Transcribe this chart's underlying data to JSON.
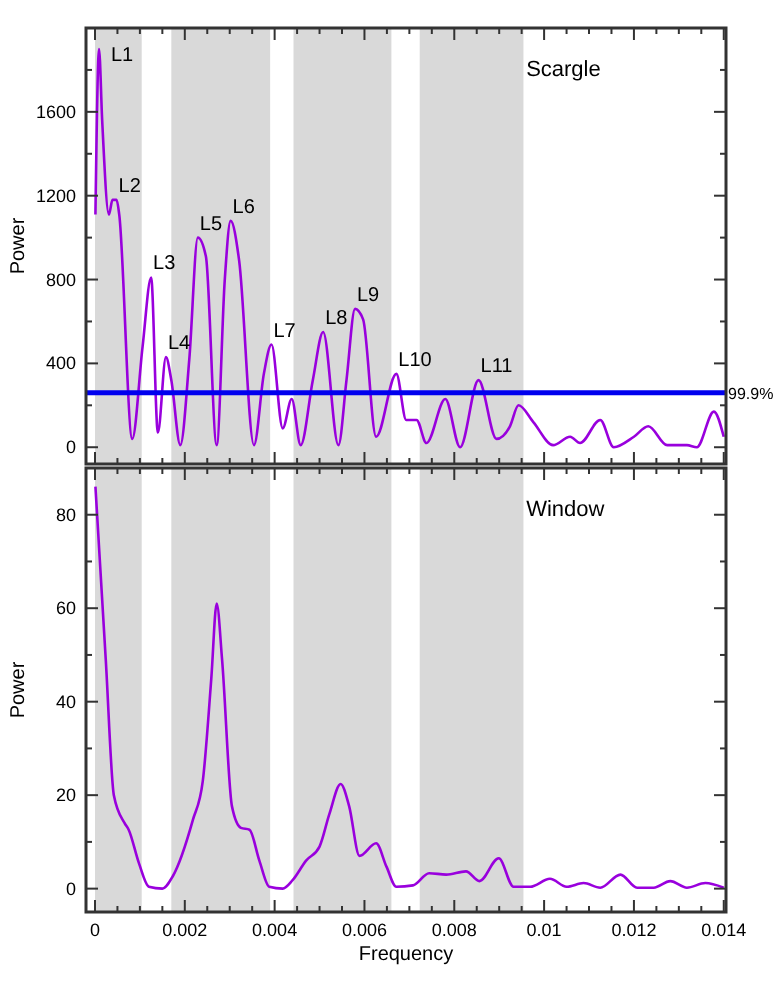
{
  "chart_data": [
    {
      "type": "line",
      "title": "Scargle",
      "ylabel": "Power",
      "tick_labels": "y",
      "xlim": [
        -0.0002,
        0.01405
      ],
      "ylim": [
        -80,
        2000
      ],
      "xticks": [
        0,
        {
          "value": 0.0005,
          "label": null
        },
        0.002,
        {
          "value": 0.001,
          "label": null
        },
        {
          "value": 0.0015,
          "label": null
        },
        {
          "value": 0.0025,
          "label": null
        },
        {
          "value": 0.003,
          "label": null
        },
        {
          "value": 0.0035,
          "label": null
        },
        0.004,
        {
          "value": 0.0045,
          "label": null
        },
        {
          "value": 0.005,
          "label": null
        },
        {
          "value": 0.0055,
          "label": null
        },
        0.006,
        {
          "value": 0.0065,
          "label": null
        },
        {
          "value": 0.007,
          "label": null
        },
        {
          "value": 0.0075,
          "label": null
        },
        0.008,
        {
          "value": 0.0085,
          "label": null
        },
        {
          "value": 0.009,
          "label": null
        },
        {
          "value": 0.0095,
          "label": null
        },
        0.01,
        {
          "value": 0.0105,
          "label": null
        },
        {
          "value": 0.011,
          "label": null
        },
        {
          "value": 0.0115,
          "label": null
        },
        0.012,
        {
          "value": 0.0125,
          "label": null
        },
        {
          "value": 0.013,
          "label": null
        },
        {
          "value": 0.0135,
          "label": null
        },
        0.014
      ],
      "yticks": [
        0,
        {
          "value": 200,
          "label": null
        },
        400,
        {
          "value": 600,
          "label": null
        },
        800,
        {
          "value": 1000,
          "label": null
        },
        1200,
        {
          "value": 1400,
          "label": null
        },
        1600,
        {
          "value": 1800,
          "label": null
        }
      ],
      "grid": false,
      "marker": "none",
      "line_style": "solid",
      "series": [
        {
          "color": "#9900dd",
          "x": [
            1e-05,
            9e-05,
            0.00016,
            0.00031,
            0.00039,
            0.00048,
            0.00054,
            0.00083,
            0.00106,
            0.00125,
            0.0014,
            0.00158,
            0.0017,
            0.0019,
            0.0021,
            0.00229,
            0.00247,
            0.00271,
            0.00289,
            0.00302,
            0.00321,
            0.00354,
            0.00376,
            0.00393,
            0.00418,
            0.00438,
            0.00458,
            0.00485,
            0.00508,
            0.00542,
            0.0056,
            0.00579,
            0.00597,
            0.00626,
            0.00671,
            0.00693,
            0.00716,
            0.00738,
            0.0078,
            0.00813,
            0.00854,
            0.00894,
            0.00924,
            0.00943,
            0.00976,
            0.0102,
            0.01058,
            0.0108,
            0.01125,
            0.01155,
            0.012,
            0.01232,
            0.01274,
            0.01318,
            0.0134,
            0.01378,
            0.014
          ],
          "values": [
            1110,
            1900,
            1560,
            1110,
            1180,
            1180,
            1110,
            40,
            480,
            810,
            70,
            430,
            320,
            10,
            420,
            1000,
            910,
            10,
            800,
            1080,
            890,
            10,
            350,
            490,
            90,
            230,
            10,
            320,
            550,
            10,
            320,
            660,
            610,
            50,
            350,
            130,
            130,
            20,
            230,
            0,
            320,
            40,
            100,
            200,
            120,
            10,
            50,
            20,
            130,
            0,
            50,
            100,
            10,
            10,
            0,
            170,
            50
          ]
        }
      ],
      "bands": [
        {
          "axis": "x",
          "from": 0,
          "to": 0.00104,
          "color": "#d9d9d9"
        },
        {
          "axis": "x",
          "from": 0.0017,
          "to": 0.0039,
          "color": "#d9d9d9"
        },
        {
          "axis": "x",
          "from": 0.00442,
          "to": 0.0066,
          "color": "#d9d9d9"
        },
        {
          "axis": "x",
          "from": 0.00723,
          "to": 0.00954,
          "color": "#d9d9d9"
        }
      ],
      "ref_lines": [
        {
          "axis": "y",
          "value": 260,
          "color": "#0000ee"
        }
      ],
      "annotations": [
        {
          "text": "L1",
          "x": 9e-05,
          "y": 1900
        },
        {
          "text": "L2",
          "x": 0.00048,
          "y": 1180
        },
        {
          "text": "L3",
          "x": 0.00125,
          "y": 810
        },
        {
          "text": "L4",
          "x": 0.00158,
          "y": 430
        },
        {
          "text": "L5",
          "x": 0.00229,
          "y": 1000
        },
        {
          "text": "L6",
          "x": 0.00302,
          "y": 1080
        },
        {
          "text": "L7",
          "x": 0.00393,
          "y": 490
        },
        {
          "text": "L8",
          "x": 0.00508,
          "y": 550
        },
        {
          "text": "L9",
          "x": 0.00579,
          "y": 660
        },
        {
          "text": "L10",
          "x": 0.00671,
          "y": 350
        },
        {
          "text": "L11",
          "x": 0.00854,
          "y": 320
        },
        {
          "text": "99.9%",
          "x": 0.01405,
          "y": 260
        }
      ]
    },
    {
      "type": "line",
      "title": "Window",
      "xlabel": "Frequency",
      "ylabel": "Power",
      "xlim": [
        -0.0002,
        0.01405
      ],
      "ylim": [
        -5,
        90
      ],
      "xticks": [
        0,
        {
          "value": 0.0005,
          "label": null
        },
        0.002,
        {
          "value": 0.001,
          "label": null
        },
        {
          "value": 0.0015,
          "label": null
        },
        {
          "value": 0.0025,
          "label": null
        },
        {
          "value": 0.003,
          "label": null
        },
        {
          "value": 0.0035,
          "label": null
        },
        0.004,
        {
          "value": 0.0045,
          "label": null
        },
        {
          "value": 0.005,
          "label": null
        },
        {
          "value": 0.0055,
          "label": null
        },
        0.006,
        {
          "value": 0.0065,
          "label": null
        },
        {
          "value": 0.007,
          "label": null
        },
        {
          "value": 0.0075,
          "label": null
        },
        0.008,
        {
          "value": 0.0085,
          "label": null
        },
        {
          "value": 0.009,
          "label": null
        },
        {
          "value": 0.0095,
          "label": null
        },
        0.01,
        {
          "value": 0.0105,
          "label": null
        },
        {
          "value": 0.011,
          "label": null
        },
        {
          "value": 0.0115,
          "label": null
        },
        0.012,
        {
          "value": 0.0125,
          "label": null
        },
        {
          "value": 0.013,
          "label": null
        },
        {
          "value": 0.0135,
          "label": null
        },
        0.014
      ],
      "yticks": [
        0,
        {
          "value": 10,
          "label": null
        },
        20,
        {
          "value": 30,
          "label": null
        },
        40,
        {
          "value": 50,
          "label": null
        },
        60,
        {
          "value": 70,
          "label": null
        },
        80
      ],
      "grid": false,
      "marker": "none",
      "line_style": "solid",
      "series": [
        {
          "color": "#9900dd",
          "x": [
            1e-05,
            0.00024,
            0.00042,
            0.00066,
            0.00075,
            0.00098,
            0.0012,
            0.0015,
            0.00173,
            0.00218,
            0.0024,
            0.00259,
            0.00271,
            0.00283,
            0.00305,
            0.00325,
            0.00344,
            0.00366,
            0.00388,
            0.00418,
            0.0044,
            0.0047,
            0.005,
            0.00522,
            0.00547,
            0.00566,
            0.00589,
            0.00626,
            0.00649,
            0.00671,
            0.00708,
            0.00744,
            0.00782,
            0.00826,
            0.00856,
            0.00899,
            0.00932,
            0.00969,
            0.01013,
            0.0105,
            0.01088,
            0.01125,
            0.0117,
            0.01207,
            0.01244,
            0.01281,
            0.01318,
            0.01359,
            0.014
          ],
          "values": [
            86,
            49,
            20,
            14,
            12.6,
            5.4,
            0.4,
            0,
            2.6,
            14.7,
            23,
            45,
            61,
            49,
            17.6,
            13,
            12.6,
            6,
            0.4,
            0,
            1.8,
            6,
            9,
            16,
            22.4,
            17.6,
            7,
            9.7,
            4.7,
            0.4,
            0.7,
            3.3,
            3,
            3.7,
            1.6,
            6.5,
            0.4,
            0.4,
            2.1,
            0.4,
            1.2,
            0.2,
            3,
            0.2,
            0.2,
            1.6,
            0.2,
            1.2,
            0.2
          ]
        }
      ],
      "bands": [
        {
          "axis": "x",
          "from": 0,
          "to": 0.00104,
          "color": "#d9d9d9"
        },
        {
          "axis": "x",
          "from": 0.0017,
          "to": 0.0039,
          "color": "#d9d9d9"
        },
        {
          "axis": "x",
          "from": 0.00442,
          "to": 0.0066,
          "color": "#d9d9d9"
        },
        {
          "axis": "x",
          "from": 0.00723,
          "to": 0.00954,
          "color": "#d9d9d9"
        }
      ]
    }
  ]
}
